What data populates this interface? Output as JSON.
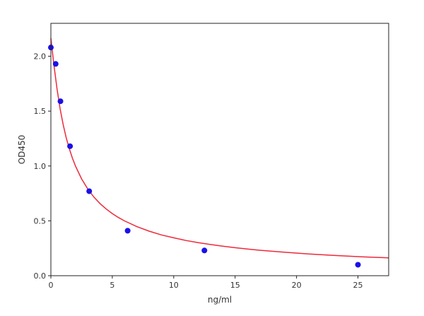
{
  "chart_data": {
    "type": "scatter",
    "title": "",
    "xlabel": "ng/ml",
    "ylabel": "OD450",
    "xlim": [
      0,
      27.5
    ],
    "ylim": [
      0,
      2.3
    ],
    "x_ticks": [
      0,
      5,
      10,
      15,
      20,
      25
    ],
    "y_ticks": [
      0.0,
      0.5,
      1.0,
      1.5,
      2.0
    ],
    "x_tick_labels": [
      "0",
      "5",
      "10",
      "15",
      "20",
      "25"
    ],
    "y_tick_labels": [
      "0.0",
      "0.5",
      "1.0",
      "1.5",
      "2.0"
    ],
    "grid": false,
    "legend": "none",
    "series": [
      {
        "kind": "points",
        "color": "#1a10e8",
        "x": [
          0,
          0.39,
          0.78,
          1.56,
          3.12,
          6.25,
          12.5,
          25
        ],
        "y": [
          2.08,
          1.93,
          1.59,
          1.18,
          0.77,
          0.41,
          0.23,
          0.1
        ]
      },
      {
        "kind": "fitted-curve",
        "color": "#ec2a3a",
        "x": [
          0,
          0.25,
          0.5,
          0.75,
          1,
          1.25,
          1.5,
          1.75,
          2,
          2.5,
          3,
          3.5,
          4,
          4.5,
          5,
          5.5,
          6,
          7,
          8,
          9,
          10,
          11,
          12,
          13,
          14,
          15,
          16,
          17,
          18,
          19,
          20,
          21,
          22,
          23,
          24,
          25,
          26,
          27,
          27.5
        ],
        "y": [
          2.165,
          1.92,
          1.703,
          1.523,
          1.377,
          1.257,
          1.157,
          1.073,
          1.0,
          0.882,
          0.791,
          0.717,
          0.658,
          0.608,
          0.566,
          0.53,
          0.499,
          0.447,
          0.406,
          0.372,
          0.345,
          0.321,
          0.301,
          0.284,
          0.269,
          0.255,
          0.243,
          0.232,
          0.223,
          0.214,
          0.206,
          0.198,
          0.192,
          0.185,
          0.18,
          0.174,
          0.169,
          0.165,
          0.163
        ]
      }
    ]
  }
}
